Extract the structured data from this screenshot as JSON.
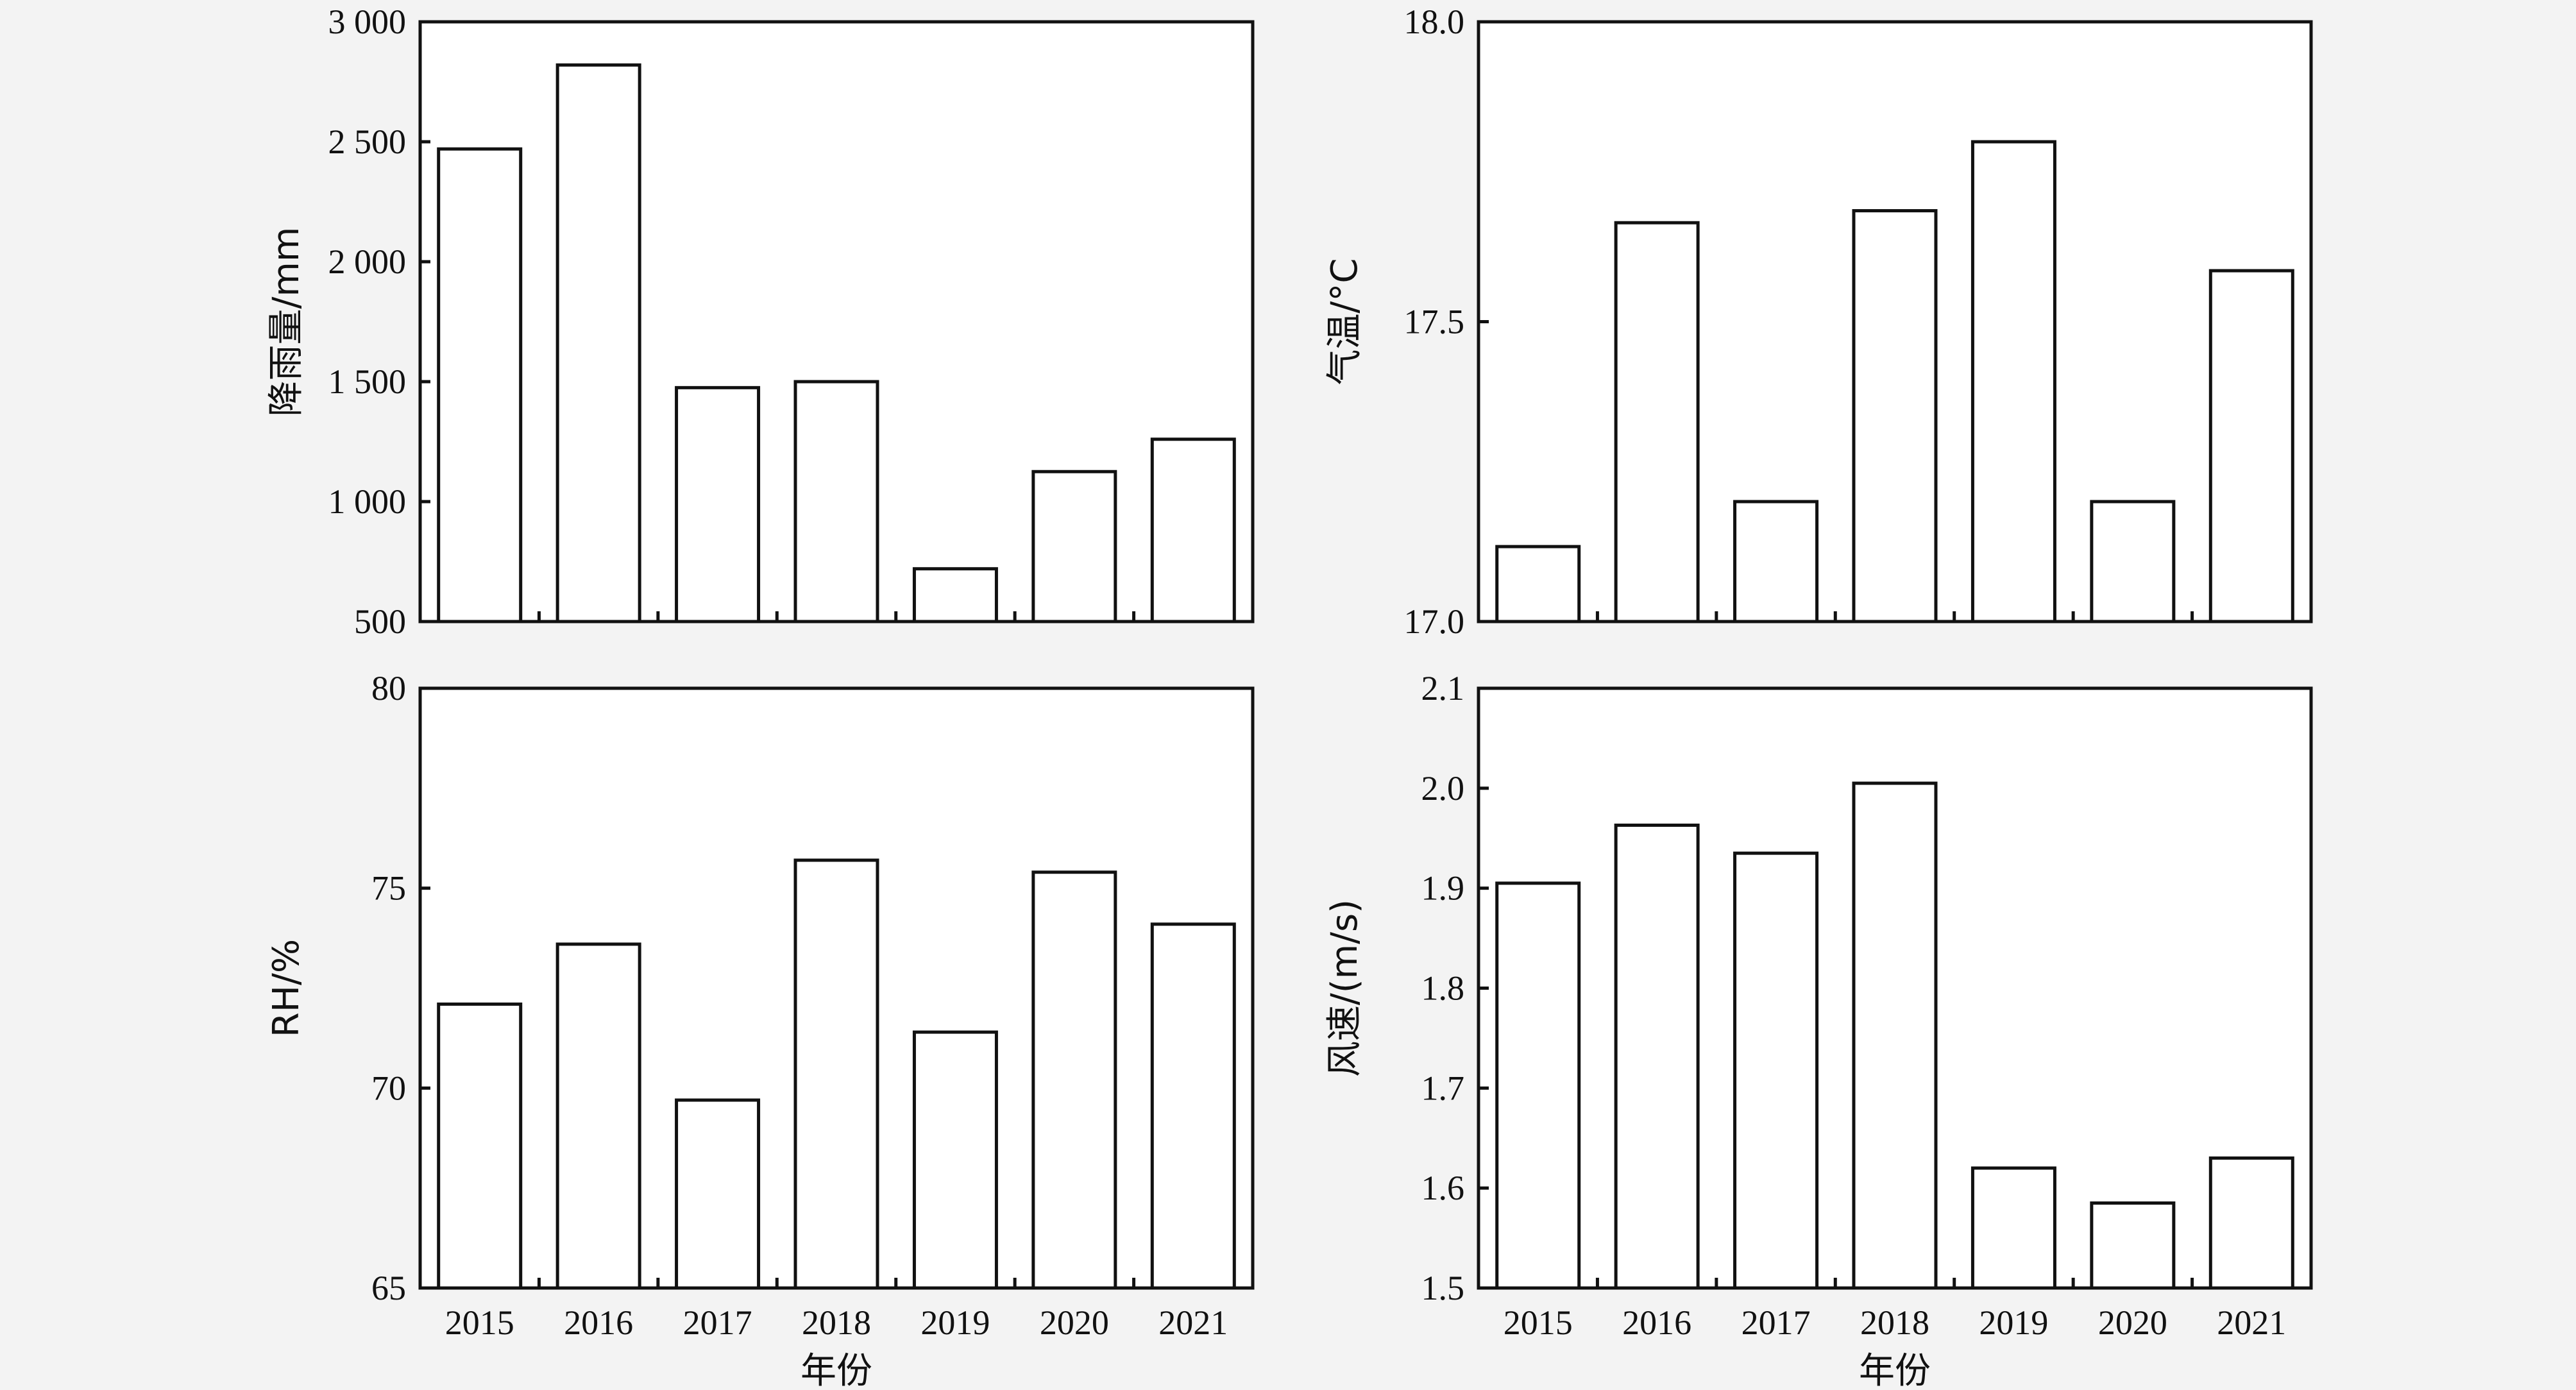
{
  "chart_data": [
    {
      "type": "bar",
      "categories": [
        "2015",
        "2016",
        "2017",
        "2018",
        "2019",
        "2020",
        "2021"
      ],
      "values": [
        2470,
        2820,
        1475,
        1500,
        720,
        1125,
        1260
      ],
      "ylabel": "降雨量/mm",
      "xlabel": "",
      "ylim": [
        500,
        3000
      ],
      "yticks": [
        500,
        1000,
        1500,
        2000,
        2500,
        3000
      ],
      "ytick_labels": [
        "500",
        "1 000",
        "1 500",
        "2 000",
        "2 500",
        "3 000"
      ],
      "show_x_tick_labels": false
    },
    {
      "type": "bar",
      "categories": [
        "2015",
        "2016",
        "2017",
        "2018",
        "2019",
        "2020",
        "2021"
      ],
      "values": [
        17.125,
        17.665,
        17.2,
        17.685,
        17.8,
        17.2,
        17.585
      ],
      "ylabel": "气温/°C",
      "xlabel": "",
      "ylim": [
        17.0,
        18.0
      ],
      "yticks": [
        17.0,
        17.5,
        18.0
      ],
      "ytick_labels": [
        "17.0",
        "17.5",
        "18.0"
      ],
      "show_x_tick_labels": false
    },
    {
      "type": "bar",
      "categories": [
        "2015",
        "2016",
        "2017",
        "2018",
        "2019",
        "2020",
        "2021"
      ],
      "values": [
        72.1,
        73.6,
        69.7,
        75.7,
        71.4,
        75.4,
        74.1
      ],
      "ylabel": "RH/%",
      "xlabel": "年份",
      "ylim": [
        65,
        80
      ],
      "yticks": [
        65,
        70,
        75,
        80
      ],
      "ytick_labels": [
        "65",
        "70",
        "75",
        "80"
      ],
      "show_x_tick_labels": true
    },
    {
      "type": "bar",
      "categories": [
        "2015",
        "2016",
        "2017",
        "2018",
        "2019",
        "2020",
        "2021"
      ],
      "values": [
        1.905,
        1.963,
        1.935,
        2.005,
        1.62,
        1.585,
        1.63
      ],
      "ylabel": "风速/(m/s)",
      "xlabel": "年份",
      "ylim": [
        1.5,
        2.1
      ],
      "yticks": [
        1.5,
        1.6,
        1.7,
        1.8,
        1.9,
        2.0,
        2.1
      ],
      "ytick_labels": [
        "1.5",
        "1.6",
        "1.7",
        "1.8",
        "1.9",
        "2.0",
        "2.1"
      ],
      "show_x_tick_labels": true
    }
  ]
}
